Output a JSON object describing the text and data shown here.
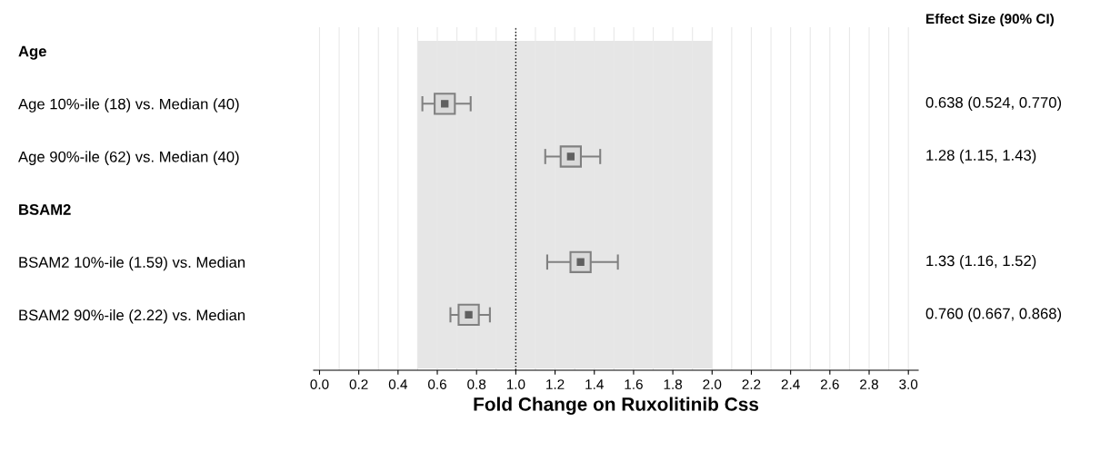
{
  "chart_data": {
    "type": "scatter",
    "xlabel": "Fold Change on Ruxolitinib Css",
    "categories": [
      "Age",
      "Age 10%-ile (18) vs. Median (40)",
      "Age 90%-ile (62) vs. Median (40)",
      "BSAM2",
      "BSAM2 10%-ile (1.59) vs. Median",
      "BSAM2 90%-ile (2.22) vs. Median"
    ],
    "orientation": "horizontal",
    "series": [
      {
        "color": "#808080",
        "values": [
          null,
          0.638,
          1.28,
          null,
          1.33,
          0.76
        ],
        "errors": [
          null,
          [
            0.524,
            0.77
          ],
          [
            1.15,
            1.43
          ],
          null,
          [
            1.16,
            1.52
          ],
          [
            0.667,
            0.868
          ]
        ]
      }
    ],
    "annotations": [
      "Effect Size (90% CI)",
      "0.638 (0.524, 0.770)",
      "1.28 (1.15, 1.43)",
      "1.33 (1.16, 1.52)",
      "0.760 (0.667, 0.868)"
    ],
    "marker": "square",
    "xlim": [
      -0.03,
      3.05
    ],
    "xticks": [
      {
        "value": 0,
        "label": "0.0"
      },
      {
        "value": 0.1,
        "label": null
      },
      0.2,
      {
        "value": 0.3,
        "label": null
      },
      0.4,
      {
        "value": 0.5,
        "label": null
      },
      0.6,
      {
        "value": 0.7,
        "label": null
      },
      0.8,
      {
        "value": 0.9,
        "label": null
      },
      {
        "value": 1,
        "label": "1.0"
      },
      {
        "value": 1.1,
        "label": null
      },
      1.2,
      {
        "value": 1.3,
        "label": null
      },
      1.4,
      {
        "value": 1.5,
        "label": null
      },
      1.6,
      {
        "value": 1.7,
        "label": null
      },
      1.8,
      {
        "value": 1.9,
        "label": null
      },
      {
        "value": 2,
        "label": "2.0"
      },
      {
        "value": 2.1,
        "label": null
      },
      2.2,
      {
        "value": 2.3,
        "label": null
      },
      2.4,
      {
        "value": 2.5,
        "label": null
      },
      2.6,
      {
        "value": 2.7,
        "label": null
      },
      2.8,
      {
        "value": 2.9,
        "label": null
      },
      {
        "value": 3,
        "label": "3.0"
      }
    ],
    "grid": "x",
    "ref_lines": [
      {
        "axis": "x",
        "value": 1.0,
        "color": "#000000",
        "line_style": "dotted"
      }
    ],
    "bands": [
      {
        "axis": "x",
        "from": 0.5,
        "to": 2.0,
        "color": "#e6e6e6"
      }
    ]
  }
}
